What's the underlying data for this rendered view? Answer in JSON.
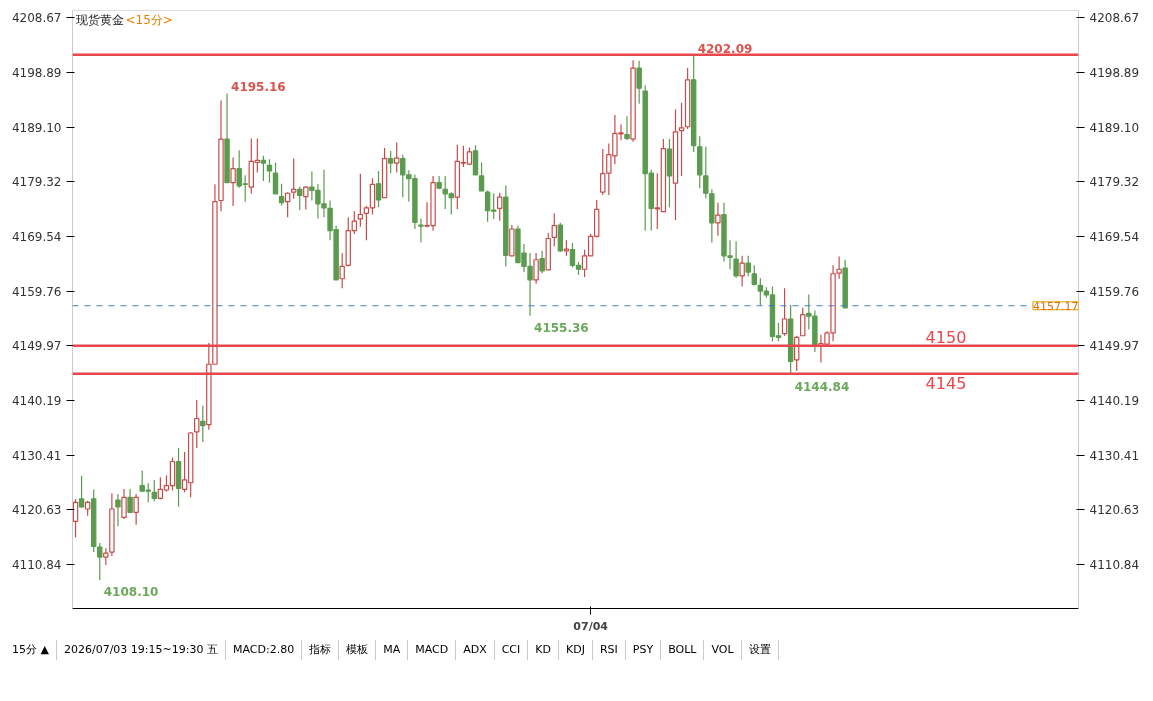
{
  "chart_data": {
    "type": "candlestick",
    "title": "现货黄金",
    "subtitle": "<15分>",
    "categories": [
      null,
      null,
      null,
      null,
      null,
      null,
      null,
      null,
      null,
      null,
      null,
      null,
      null,
      null,
      null,
      null,
      null,
      null,
      null,
      null,
      null,
      null,
      null,
      null,
      null,
      null,
      null,
      null,
      null,
      null,
      null,
      null,
      null,
      null,
      null,
      null,
      null,
      null,
      null,
      null,
      null,
      null,
      null,
      null,
      null,
      null,
      null,
      null,
      null,
      null,
      null,
      null,
      null,
      null,
      null,
      null,
      null,
      null,
      null,
      null,
      null,
      null,
      null,
      null,
      null,
      null,
      null,
      null,
      null,
      null,
      null,
      null,
      null,
      null,
      null,
      null,
      null,
      null,
      null,
      null,
      null,
      null,
      null,
      null,
      null,
      "07/04",
      null,
      null,
      null,
      null,
      null,
      null,
      null,
      null,
      null,
      null,
      null,
      null,
      null,
      null,
      null,
      null,
      null,
      null,
      null,
      null,
      null,
      null,
      null,
      null,
      null,
      null,
      null,
      null,
      null,
      null,
      null,
      null,
      null,
      null,
      null,
      null,
      null,
      null,
      null,
      null,
      null,
      null,
      null,
      null,
      null,
      null,
      null,
      null,
      null,
      null,
      null,
      null,
      null,
      null,
      null,
      null,
      null,
      null,
      null,
      null,
      null,
      null,
      null,
      null,
      null,
      null,
      null,
      null,
      null,
      null,
      null,
      null,
      null,
      null,
      null,
      null,
      null,
      null,
      null,
      null
    ],
    "ohlc": [
      [
        4118.6,
        4122.6,
        4115.7,
        4122.0
      ],
      [
        4122.6,
        4126.7,
        4121.0,
        4121.2
      ],
      [
        4120.8,
        4122.3,
        4119.6,
        4122.0
      ],
      [
        4122.6,
        4124.3,
        4113.1,
        4114.1
      ],
      [
        4114.0,
        4114.7,
        4108.1,
        4112.2
      ],
      [
        4112.2,
        4113.8,
        4110.8,
        4112.9
      ],
      [
        4113.1,
        4123.6,
        4112.4,
        4120.8
      ],
      [
        4122.4,
        4123.5,
        4117.7,
        4121.2
      ],
      [
        4119.3,
        4124.4,
        4119.0,
        4122.9
      ],
      [
        4122.9,
        4124.4,
        4120.2,
        4120.2
      ],
      [
        4120.2,
        4123.5,
        4118.0,
        4122.9
      ],
      [
        4125.0,
        4127.7,
        4124.0,
        4124.0
      ],
      [
        4124.2,
        4125.4,
        4122.0,
        4124.0
      ],
      [
        4123.8,
        4126.0,
        4122.2,
        4122.7
      ],
      [
        4122.7,
        4126.5,
        4122.5,
        4124.3
      ],
      [
        4124.2,
        4126.8,
        4123.9,
        4125.0
      ],
      [
        4125.0,
        4130.0,
        4124.1,
        4129.3
      ],
      [
        4129.3,
        4131.7,
        4121.2,
        4124.5
      ],
      [
        4124.3,
        4131.0,
        4123.8,
        4126.0
      ],
      [
        4125.5,
        4134.6,
        4122.9,
        4134.4
      ],
      [
        4134.6,
        4140.3,
        4131.7,
        4137.0
      ],
      [
        4136.5,
        4139.3,
        4132.8,
        4135.7
      ],
      [
        4135.9,
        4150.5,
        4135.0,
        4146.7
      ],
      [
        4146.7,
        4178.9,
        4146.7,
        4175.8
      ],
      [
        4176.0,
        4193.9,
        4174.1,
        4187.0
      ],
      [
        4187.0,
        4195.16,
        4179.2,
        4179.2
      ],
      [
        4179.2,
        4183.7,
        4175.0,
        4181.7
      ],
      [
        4181.7,
        4185.0,
        4178.3,
        4178.6
      ],
      [
        4179.0,
        4180.5,
        4175.8,
        4178.9
      ],
      [
        4178.4,
        4187.1,
        4177.2,
        4183.0
      ],
      [
        4182.8,
        4187.1,
        4181.0,
        4183.2
      ],
      [
        4183.2,
        4184.0,
        4179.5,
        4182.7
      ],
      [
        4182.3,
        4183.4,
        4179.2,
        4181.3
      ],
      [
        4180.9,
        4182.8,
        4177.2,
        4177.2
      ],
      [
        4176.7,
        4179.0,
        4175.1,
        4175.6
      ],
      [
        4175.8,
        4177.5,
        4173.0,
        4177.3
      ],
      [
        4177.5,
        4183.5,
        4176.3,
        4178.0
      ],
      [
        4178.0,
        4178.5,
        4174.3,
        4176.9
      ],
      [
        4176.7,
        4178.6,
        4174.4,
        4178.4
      ],
      [
        4178.4,
        4181.2,
        4176.0,
        4177.8
      ],
      [
        4177.8,
        4178.9,
        4172.8,
        4175.4
      ],
      [
        4175.4,
        4181.5,
        4173.0,
        4174.7
      ],
      [
        4174.6,
        4176.0,
        4168.9,
        4170.6
      ],
      [
        4170.8,
        4171.5,
        4161.8,
        4161.8
      ],
      [
        4162.0,
        4166.6,
        4160.3,
        4164.2
      ],
      [
        4164.4,
        4173.0,
        4164.2,
        4170.6
      ],
      [
        4170.6,
        4174.1,
        4170.0,
        4172.3
      ],
      [
        4172.7,
        4180.8,
        4171.3,
        4173.5
      ],
      [
        4173.7,
        4175.0,
        4168.9,
        4174.7
      ],
      [
        4174.7,
        4180.0,
        4173.5,
        4178.9
      ],
      [
        4179.0,
        4181.3,
        4174.8,
        4176.1
      ],
      [
        4176.5,
        4185.4,
        4176.5,
        4183.5
      ],
      [
        4183.5,
        4184.9,
        4180.9,
        4182.7
      ],
      [
        4182.7,
        4186.4,
        4181.0,
        4183.6
      ],
      [
        4183.5,
        4184.2,
        4176.6,
        4180.6
      ],
      [
        4180.6,
        4181.4,
        4175.8,
        4179.9
      ],
      [
        4179.9,
        4180.6,
        4170.9,
        4172.1
      ],
      [
        4171.6,
        4172.8,
        4168.5,
        4171.4
      ],
      [
        4171.4,
        4175.7,
        4171.2,
        4171.5
      ],
      [
        4171.5,
        4180.4,
        4170.6,
        4179.2
      ],
      [
        4179.2,
        4180.4,
        4178.0,
        4178.2
      ],
      [
        4178.0,
        4180.4,
        4174.5,
        4177.2
      ],
      [
        4177.2,
        4177.5,
        4173.5,
        4176.5
      ],
      [
        4176.6,
        4186.0,
        4174.5,
        4183.0
      ],
      [
        4182.7,
        4185.8,
        4182.0,
        4182.8
      ],
      [
        4182.5,
        4185.5,
        4182.3,
        4184.7
      ],
      [
        4184.9,
        4185.9,
        4180.6,
        4180.6
      ],
      [
        4180.4,
        4182.8,
        4177.7,
        4177.7
      ],
      [
        4177.5,
        4177.8,
        4172.2,
        4174.2
      ],
      [
        4174.3,
        4177.3,
        4172.7,
        4174.1
      ],
      [
        4174.6,
        4177.4,
        4172.4,
        4176.6
      ],
      [
        4176.6,
        4178.7,
        4164.2,
        4166.2
      ],
      [
        4166.1,
        4171.6,
        4166.1,
        4170.9
      ],
      [
        4170.9,
        4171.5,
        4164.9,
        4164.9
      ],
      [
        4166.6,
        4168.2,
        4163.2,
        4164.2
      ],
      [
        4164.2,
        4166.6,
        4155.36,
        4161.8
      ],
      [
        4161.8,
        4166.6,
        4161.1,
        4165.4
      ],
      [
        4165.6,
        4167.0,
        4163.0,
        4163.4
      ],
      [
        4163.6,
        4170.2,
        4163.6,
        4169.2
      ],
      [
        4169.4,
        4173.7,
        4167.8,
        4171.5
      ],
      [
        4171.6,
        4172.0,
        4166.8,
        4167.0
      ],
      [
        4167.0,
        4168.9,
        4166.1,
        4167.3
      ],
      [
        4167.2,
        4168.4,
        4164.0,
        4164.4
      ],
      [
        4164.4,
        4165.0,
        4162.7,
        4163.7
      ],
      [
        4163.7,
        4167.2,
        4162.3,
        4166.1
      ],
      [
        4166.1,
        4170.0,
        4166.1,
        4169.6
      ],
      [
        4169.6,
        4176.1,
        4169.4,
        4174.4
      ],
      [
        4177.5,
        4185.2,
        4177.0,
        4180.8
      ],
      [
        4180.9,
        4186.2,
        4177.0,
        4184.2
      ],
      [
        4184.0,
        4191.3,
        4182.5,
        4188.0
      ],
      [
        4187.9,
        4189.6,
        4186.8,
        4188.1
      ],
      [
        4187.8,
        4191.1,
        4186.8,
        4187.1
      ],
      [
        4187.0,
        4201.1,
        4186.5,
        4199.7
      ],
      [
        4199.7,
        4201.0,
        4193.3,
        4196.1
      ],
      [
        4195.6,
        4196.6,
        4170.6,
        4180.8
      ],
      [
        4180.9,
        4181.5,
        4170.6,
        4174.6
      ],
      [
        4174.5,
        4180.9,
        4170.9,
        4174.7
      ],
      [
        4174.0,
        4187.0,
        4174.0,
        4185.3
      ],
      [
        4185.2,
        4187.0,
        4174.8,
        4180.4
      ],
      [
        4179.1,
        4192.3,
        4172.5,
        4188.3
      ],
      [
        4188.5,
        4193.5,
        4180.4,
        4189.0
      ],
      [
        4189.2,
        4199.7,
        4188.8,
        4197.6
      ],
      [
        4197.6,
        4202.09,
        4184.7,
        4185.8
      ],
      [
        4185.6,
        4187.5,
        4178.2,
        4180.6
      ],
      [
        4180.4,
        4185.6,
        4176.4,
        4177.3
      ],
      [
        4177.2,
        4178.0,
        4168.5,
        4172.0
      ],
      [
        4172.0,
        4175.6,
        4169.7,
        4173.4
      ],
      [
        4173.5,
        4175.6,
        4165.1,
        4166.1
      ],
      [
        4166.1,
        4168.9,
        4163.7,
        4165.8
      ],
      [
        4165.5,
        4168.7,
        4162.2,
        4162.5
      ],
      [
        4162.5,
        4166.1,
        4160.6,
        4164.8
      ],
      [
        4164.8,
        4166.1,
        4162.4,
        4163.2
      ],
      [
        4162.9,
        4164.4,
        4160.8,
        4161.0
      ],
      [
        4160.8,
        4162.1,
        4157.2,
        4159.8
      ],
      [
        4159.8,
        4160.5,
        4158.6,
        4159.1
      ],
      [
        4159.1,
        4160.6,
        4150.8,
        4151.7
      ],
      [
        4151.8,
        4154.1,
        4150.8,
        4151.5
      ],
      [
        4152.2,
        4160.3,
        4151.8,
        4154.8
      ],
      [
        4154.8,
        4157.3,
        4144.84,
        4147.2
      ],
      [
        4147.5,
        4151.8,
        4145.5,
        4151.5
      ],
      [
        4151.8,
        4156.8,
        4151.8,
        4155.6
      ],
      [
        4155.8,
        4159.2,
        4152.9,
        4155.3
      ],
      [
        4155.3,
        4156.3,
        4148.9,
        4149.9
      ],
      [
        4149.9,
        4152.0,
        4147.0,
        4150.4
      ],
      [
        4150.3,
        4152.6,
        4149.8,
        4152.3
      ],
      [
        4152.3,
        4164.4,
        4150.8,
        4162.9
      ],
      [
        4163.0,
        4166.0,
        4162.0,
        4163.7
      ],
      [
        4163.9,
        4165.4,
        4156.8,
        4156.8
      ],
      null,
      null,
      null,
      null,
      null,
      null,
      null,
      null,
      null,
      null,
      null,
      null,
      null,
      null,
      null,
      null,
      null,
      null,
      null,
      null,
      null,
      null,
      null,
      null,
      null,
      null,
      null,
      null,
      null,
      null,
      null,
      null,
      null,
      null,
      null,
      null,
      null,
      null
    ],
    "value_labels": [
      null,
      null,
      null,
      null,
      "4108.10",
      null,
      null,
      null,
      null,
      null,
      null,
      null,
      null,
      null,
      null,
      null,
      null,
      null,
      null,
      null,
      null,
      null,
      null,
      null,
      null,
      "4195.16",
      null,
      null,
      null,
      null,
      null,
      null,
      null,
      null,
      null,
      null,
      null,
      null,
      null,
      null,
      null,
      null,
      null,
      null,
      null,
      null,
      null,
      null,
      null,
      null,
      null,
      null,
      null,
      null,
      null,
      null,
      null,
      null,
      null,
      null,
      null,
      null,
      null,
      null,
      null,
      null,
      null,
      null,
      null,
      null,
      null,
      null,
      null,
      null,
      null,
      "4155.36",
      null,
      null,
      null,
      null,
      null,
      null,
      null,
      null,
      null,
      null,
      null,
      null,
      null,
      null,
      null,
      null,
      null,
      null,
      null,
      null,
      null,
      null,
      null,
      null,
      null,
      null,
      "4202.09",
      null,
      null,
      null,
      null,
      null,
      null,
      null,
      null,
      null,
      null,
      null,
      null,
      null,
      null,
      null,
      "4144.84",
      null,
      null,
      null,
      null,
      null,
      null,
      null,
      null,
      null,
      null,
      null,
      null,
      null,
      null,
      null,
      null,
      null,
      null,
      null,
      null,
      null,
      null,
      null,
      null,
      null,
      null,
      null,
      null,
      null,
      null,
      null,
      null,
      null,
      null,
      null,
      null,
      null,
      null,
      null,
      null,
      null,
      null,
      null,
      null,
      null,
      null,
      null
    ],
    "colors": [
      "#c84b4b",
      "#5b9b4f",
      "#c84b4b",
      "#5b9b4f",
      "#5b9b4f",
      "#c84b4b",
      "#c84b4b",
      "#5b9b4f",
      "#c84b4b",
      "#5b9b4f",
      "#c84b4b",
      "#5b9b4f",
      "#5b9b4f",
      "#5b9b4f",
      "#c84b4b",
      "#c84b4b",
      "#c84b4b",
      "#5b9b4f",
      "#c84b4b",
      "#c84b4b",
      "#c84b4b",
      "#5b9b4f",
      "#c84b4b",
      "#c84b4b",
      "#c84b4b",
      "#5b9b4f",
      "#c84b4b",
      "#5b9b4f",
      "#5b9b4f",
      "#c84b4b",
      "#c84b4b",
      "#5b9b4f",
      "#5b9b4f",
      "#5b9b4f",
      "#5b9b4f",
      "#c84b4b",
      "#c84b4b",
      "#5b9b4f",
      "#c84b4b",
      "#5b9b4f",
      "#5b9b4f",
      "#5b9b4f",
      "#5b9b4f",
      "#5b9b4f",
      "#c84b4b",
      "#c84b4b",
      "#c84b4b",
      "#c84b4b",
      "#c84b4b",
      "#c84b4b",
      "#5b9b4f",
      "#c84b4b",
      "#5b9b4f",
      "#c84b4b",
      "#5b9b4f",
      "#5b9b4f",
      "#5b9b4f",
      "#5b9b4f",
      "#c84b4b",
      "#c84b4b",
      "#5b9b4f",
      "#5b9b4f",
      "#5b9b4f",
      "#c84b4b",
      "#c84b4b",
      "#c84b4b",
      "#5b9b4f",
      "#5b9b4f",
      "#5b9b4f",
      "#5b9b4f",
      "#c84b4b",
      "#5b9b4f",
      "#c84b4b",
      "#5b9b4f",
      "#5b9b4f",
      "#5b9b4f",
      "#c84b4b",
      "#5b9b4f",
      "#c84b4b",
      "#c84b4b",
      "#5b9b4f",
      "#c84b4b",
      "#5b9b4f",
      "#5b9b4f",
      "#c84b4b",
      "#c84b4b",
      "#c84b4b",
      "#c84b4b",
      "#c84b4b",
      "#c84b4b",
      "#c84b4b",
      "#5b9b4f",
      "#c84b4b",
      "#5b9b4f",
      "#5b9b4f",
      "#5b9b4f",
      "#c84b4b",
      "#c84b4b",
      "#5b9b4f",
      "#c84b4b",
      "#c84b4b",
      "#c84b4b",
      "#5b9b4f",
      "#5b9b4f",
      "#5b9b4f",
      "#5b9b4f",
      "#c84b4b",
      "#5b9b4f",
      "#5b9b4f",
      "#5b9b4f",
      "#c84b4b",
      "#5b9b4f",
      "#5b9b4f",
      "#5b9b4f",
      "#5b9b4f",
      "#5b9b4f",
      "#5b9b4f",
      "#c84b4b",
      "#5b9b4f",
      "#c84b4b",
      "#c84b4b",
      "#5b9b4f",
      "#5b9b4f",
      "#c84b4b",
      "#c84b4b",
      "#c84b4b",
      "#c84b4b",
      "#5b9b4f",
      null,
      null,
      null,
      null,
      null,
      null,
      null,
      null,
      null,
      null,
      null,
      null,
      null,
      null,
      null,
      null,
      null,
      null,
      null,
      null,
      null,
      null,
      null,
      null,
      null,
      null,
      null,
      null,
      null,
      null,
      null,
      null,
      null,
      null,
      null,
      null,
      null,
      null
    ],
    "ylim": [
      4103.0,
      4210.0
    ],
    "yticks": [
      4110.84,
      4120.63,
      4130.41,
      4140.19,
      4149.97,
      4159.76,
      4169.54,
      4179.32,
      {
        "value": 4189.1,
        "label": "4189.10"
      },
      4198.89,
      4208.67
    ],
    "y2lim": [
      4103.0,
      4210.0
    ],
    "y2ticks": [
      4110.84,
      4120.63,
      4130.41,
      4140.19,
      4149.97,
      4159.76,
      4169.54,
      4179.32,
      {
        "value": 4189.1,
        "label": "4189.10"
      },
      4198.89,
      4208.67
    ],
    "ref_lines": [
      {
        "axis": "y",
        "value": 4202.09,
        "label": null,
        "color": "#e8474c"
      },
      {
        "axis": "y",
        "value": 4157.17,
        "label": "4157.17",
        "color": "#3a7fc8",
        "line_style": "dashed"
      },
      {
        "axis": "y",
        "value": 4150,
        "label": "4150",
        "color": "#e8474c"
      },
      {
        "axis": "y",
        "value": 4145,
        "label": "4145",
        "color": "#e8474c"
      }
    ],
    "annotations": [
      "15分 ▲",
      "2026/07/03 19:15~19:30 五",
      "MACD:2.80",
      "指标",
      "模板",
      "MA",
      "MACD",
      "ADX",
      "CCI",
      "KD",
      "KDJ",
      "RSI",
      "PSY",
      "BOLL",
      "VOL",
      "设置"
    ],
    "grid": false
  }
}
